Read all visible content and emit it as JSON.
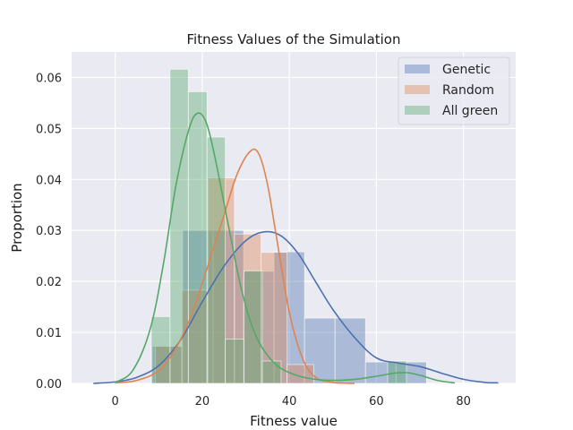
{
  "chart_data": {
    "type": "bar",
    "title": "Fitness Values of the Simulation",
    "xlabel": "Fitness value",
    "ylabel": "Proportion",
    "xlim": [
      -10,
      92
    ],
    "ylim": [
      0,
      0.065
    ],
    "xticks": [
      0,
      20,
      40,
      60,
      80
    ],
    "xtick_labels": [
      "0",
      "20",
      "40",
      "60",
      "80"
    ],
    "yticks": [
      0,
      0.01,
      0.02,
      0.03,
      0.04,
      0.05,
      0.06
    ],
    "ytick_labels": [
      "0.00",
      "0.01",
      "0.02",
      "0.03",
      "0.04",
      "0.05",
      "0.06"
    ],
    "grid": true,
    "legend_position": "top-right",
    "series": [
      {
        "name": "Genetic",
        "color": "#4c72b0",
        "histogram": [
          {
            "x0": 8.5,
            "x1": 15.5,
            "y": 0.0073
          },
          {
            "x0": 15.5,
            "x1": 22.5,
            "y": 0.03
          },
          {
            "x0": 22.5,
            "x1": 29.5,
            "y": 0.03
          },
          {
            "x0": 29.5,
            "x1": 36.5,
            "y": 0.022
          },
          {
            "x0": 36.5,
            "x1": 43.5,
            "y": 0.0258
          },
          {
            "x0": 43.5,
            "x1": 50.5,
            "y": 0.0128
          },
          {
            "x0": 50.5,
            "x1": 57.5,
            "y": 0.0128
          },
          {
            "x0": 57.5,
            "x1": 64.5,
            "y": 0.0042
          },
          {
            "x0": 64.5,
            "x1": 71.5,
            "y": 0.0042
          }
        ],
        "kde": {
          "x": [
            -5,
            0,
            5,
            10,
            15,
            20,
            25,
            30,
            34,
            38,
            42,
            46,
            50,
            55,
            60,
            65,
            70,
            75,
            80,
            85,
            88
          ],
          "y": [
            0,
            0.0003,
            0.0012,
            0.0035,
            0.0085,
            0.016,
            0.023,
            0.028,
            0.0297,
            0.029,
            0.0255,
            0.02,
            0.0145,
            0.009,
            0.005,
            0.004,
            0.0033,
            0.002,
            0.0008,
            0.0002,
            0.0001
          ]
        }
      },
      {
        "name": "Random",
        "color": "#dd8452",
        "histogram": [
          {
            "x0": 9.2,
            "x1": 15.3,
            "y": 0.0073
          },
          {
            "x0": 15.3,
            "x1": 21.3,
            "y": 0.0183
          },
          {
            "x0": 21.3,
            "x1": 27.4,
            "y": 0.0403
          },
          {
            "x0": 27.4,
            "x1": 33.5,
            "y": 0.0293
          },
          {
            "x0": 33.5,
            "x1": 39.5,
            "y": 0.0257
          },
          {
            "x0": 39.5,
            "x1": 45.6,
            "y": 0.0037
          }
        ],
        "kde": {
          "x": [
            0,
            5,
            10,
            14,
            18,
            22,
            25,
            28,
            31,
            33,
            35,
            37,
            40,
            43,
            46,
            50,
            55
          ],
          "y": [
            0.0001,
            0.0006,
            0.0025,
            0.007,
            0.0145,
            0.025,
            0.033,
            0.041,
            0.0455,
            0.045,
            0.039,
            0.029,
            0.014,
            0.005,
            0.0012,
            0.0002,
            0
          ]
        }
      },
      {
        "name": "All green",
        "color": "#55a868",
        "histogram": [
          {
            "x0": 8.3,
            "x1": 12.6,
            "y": 0.0131
          },
          {
            "x0": 12.6,
            "x1": 16.8,
            "y": 0.0616
          },
          {
            "x0": 16.8,
            "x1": 21.1,
            "y": 0.0572
          },
          {
            "x0": 21.1,
            "x1": 25.3,
            "y": 0.0483
          },
          {
            "x0": 25.3,
            "x1": 29.6,
            "y": 0.0087
          },
          {
            "x0": 29.6,
            "x1": 33.8,
            "y": 0.0221
          },
          {
            "x0": 33.8,
            "x1": 38.1,
            "y": 0.0044
          },
          {
            "x0": 62.6,
            "x1": 66.9,
            "y": 0.0044
          }
        ],
        "kde": {
          "x": [
            0,
            4,
            8,
            11,
            14,
            17,
            19,
            21,
            23,
            26,
            29,
            32,
            35,
            38,
            42,
            46,
            50,
            55,
            60,
            64,
            67,
            70,
            74,
            78
          ],
          "y": [
            0.0002,
            0.0025,
            0.0105,
            0.023,
            0.039,
            0.05,
            0.053,
            0.051,
            0.044,
            0.031,
            0.0185,
            0.01,
            0.0055,
            0.003,
            0.0015,
            0.0008,
            0.0006,
            0.0008,
            0.0014,
            0.002,
            0.0021,
            0.0016,
            0.0006,
            0.0001
          ]
        }
      }
    ]
  }
}
